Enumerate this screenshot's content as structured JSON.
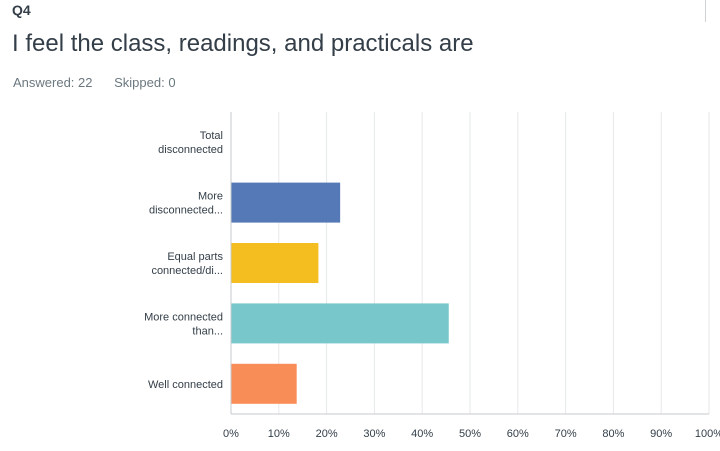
{
  "question": {
    "number": "Q4",
    "title": "I feel the class, readings, and practicals are",
    "answered_label": "Answered: 22",
    "skipped_label": "Skipped: 0"
  },
  "chart_data": {
    "type": "bar",
    "orientation": "horizontal",
    "categories": [
      [
        "Total",
        "disconnected"
      ],
      [
        "More",
        "disconnected..."
      ],
      [
        "Equal parts",
        "connected/di..."
      ],
      [
        "More connected",
        "than..."
      ],
      [
        "Well connected"
      ]
    ],
    "values": [
      0,
      22.73,
      18.18,
      45.45,
      13.64
    ],
    "colors": [
      "#5479b6",
      "#5479b6",
      "#f5be20",
      "#77c7cb",
      "#f98d57"
    ],
    "xlim": [
      0,
      100
    ],
    "x_ticks": [
      "0%",
      "10%",
      "20%",
      "30%",
      "40%",
      "50%",
      "60%",
      "70%",
      "80%",
      "90%",
      "100%"
    ],
    "grid": true
  }
}
